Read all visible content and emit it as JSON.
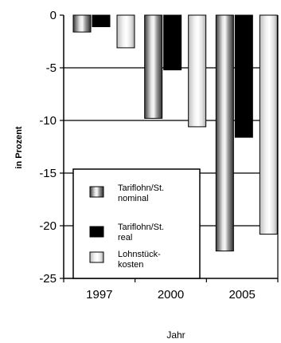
{
  "chart_data": {
    "type": "bar",
    "categories": [
      "1997",
      "2000",
      "2005"
    ],
    "series": [
      {
        "name": "Tariflohn/St. nominal",
        "values": [
          -1.6,
          -9.8,
          -22.4
        ],
        "fill": "metallic-gray"
      },
      {
        "name": "Tariflohn/St. real",
        "values": [
          -1.1,
          -5.2,
          -11.6
        ],
        "fill": "#000000"
      },
      {
        "name": "Lohnstück-kosten",
        "values": [
          -3.1,
          -10.6,
          -20.8
        ],
        "fill": "metallic-light"
      }
    ],
    "legend_lines": [
      [
        "Tariflohn/St.",
        "nominal"
      ],
      [
        "Tariflohn/St.",
        "real"
      ],
      [
        "Lohnstück-",
        "kosten"
      ]
    ],
    "xlabel": "Jahr",
    "ylabel": "in Prozent",
    "ylim": [
      -25,
      0
    ],
    "yticks": [
      0,
      -5,
      -10,
      -15,
      -20,
      -25
    ],
    "ytick_labels": [
      "0",
      "-5",
      "-10",
      "-15",
      "-20",
      "-25"
    ],
    "grid": "horizontal",
    "legend_position": "bottom-left"
  }
}
